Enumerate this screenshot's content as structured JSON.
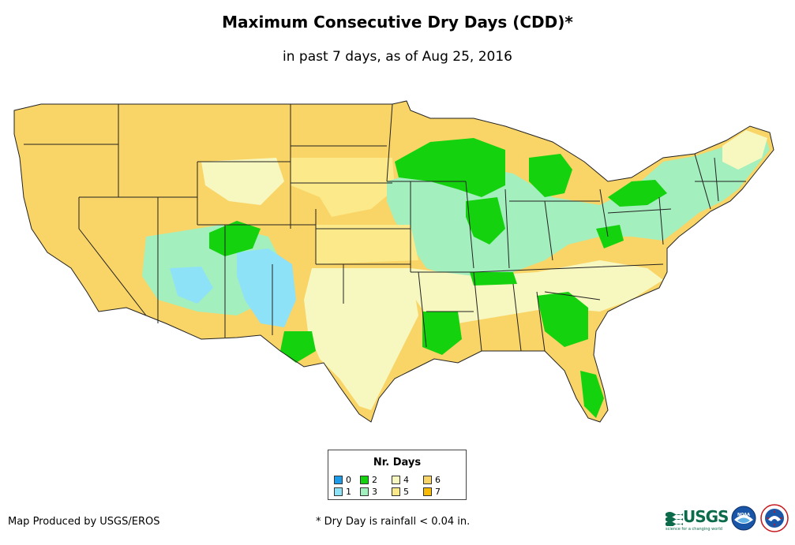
{
  "map": {
    "title": "Maximum Consecutive Dry Days (CDD)*",
    "subtitle": "in past 7 days, as of Aug 25, 2016"
  },
  "legend": {
    "title": "Nr. Days",
    "items": [
      {
        "label": "0",
        "color": "#1e9be8"
      },
      {
        "label": "1",
        "color": "#8ee2f8"
      },
      {
        "label": "2",
        "color": "#14d20e"
      },
      {
        "label": "3",
        "color": "#a4efbe"
      },
      {
        "label": "4",
        "color": "#f7f7c0"
      },
      {
        "label": "5",
        "color": "#fbe98a"
      },
      {
        "label": "6",
        "color": "#f9d466"
      },
      {
        "label": "7",
        "color": "#f7bb05"
      }
    ]
  },
  "footer": {
    "credit": "Map Produced by USGS/EROS",
    "footnote": "* Dry Day is rainfall < 0.04 in."
  },
  "logos": {
    "usgs": "USGS",
    "usgs_tagline": "science for a changing world",
    "noaa": "NOAA"
  },
  "icons": {
    "usgs": "usgs-logo-icon",
    "noaa": "noaa-logo-icon",
    "nws": "nws-logo-icon"
  }
}
